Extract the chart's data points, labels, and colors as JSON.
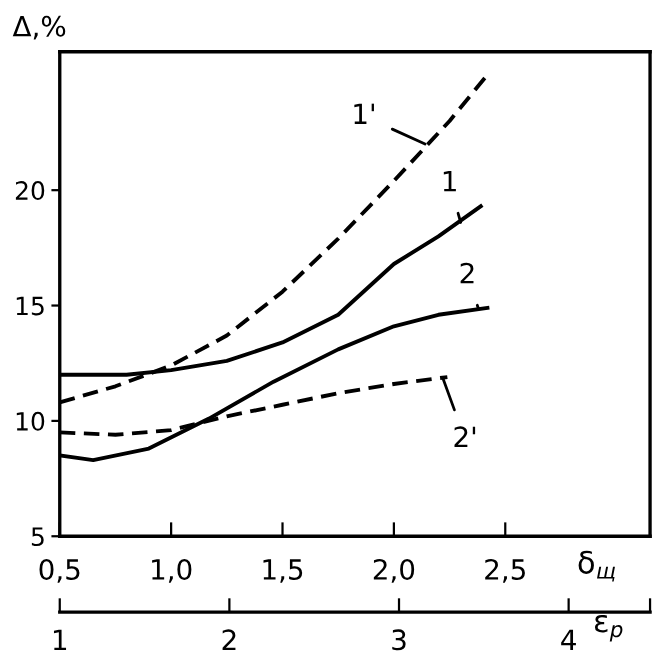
{
  "chart_data": {
    "type": "line",
    "xlabel": "δ$_{щ}$",
    "ylabel": "Δ,%",
    "x2label": "ε$_{p}$",
    "xlim": [
      0.5,
      3.15
    ],
    "xticks": [
      {
        "value": 0.5,
        "label": "0,5"
      },
      {
        "value": 1.0,
        "label": "1,0"
      },
      {
        "value": 1.5,
        "label": "1,5"
      },
      {
        "value": 2.0,
        "label": "2,0"
      },
      {
        "value": 2.5,
        "label": "2,5"
      }
    ],
    "x2lim": [
      1,
      4.48
    ],
    "x2ticks": [
      1,
      2,
      3,
      4,
      {
        "value": 4.48,
        "label": null
      }
    ],
    "ylim": [
      5,
      26
    ],
    "yticks": [
      5,
      10,
      15,
      20
    ],
    "grid": false,
    "marker": "none",
    "series": [
      {
        "color": "#000000",
        "line_style": "solid",
        "x": [
          0.5,
          0.8,
          1.0,
          1.25,
          1.5,
          1.75,
          2.0,
          2.2,
          2.39
        ],
        "values": [
          12.0,
          12.0,
          12.2,
          12.6,
          13.4,
          14.6,
          16.8,
          18.0,
          19.3
        ]
      },
      {
        "color": "#000000",
        "line_style": "dashed",
        "x": [
          0.5,
          0.75,
          1.0,
          1.25,
          1.5,
          1.75,
          2.0,
          2.25,
          2.42
        ],
        "values": [
          10.8,
          11.5,
          12.4,
          13.7,
          15.6,
          17.9,
          20.4,
          23.0,
          25.0
        ]
      },
      {
        "color": "#000000",
        "line_style": "solid",
        "x": [
          0.5,
          0.65,
          0.9,
          1.17,
          1.46,
          1.75,
          2.0,
          2.2,
          2.42
        ],
        "values": [
          8.5,
          8.3,
          8.8,
          10.1,
          11.7,
          13.1,
          14.1,
          14.6,
          14.9
        ]
      },
      {
        "color": "#000000",
        "line_style": "dashed",
        "x": [
          0.5,
          0.75,
          1.0,
          1.25,
          1.5,
          1.75,
          2.0,
          2.24
        ],
        "values": [
          9.5,
          9.4,
          9.6,
          10.2,
          10.7,
          11.2,
          11.6,
          11.9
        ]
      }
    ],
    "annotations": [
      {
        "text": "1'",
        "x": 2.14,
        "y": 22.0
      },
      {
        "text": "1",
        "x": 2.3,
        "y": 18.6
      },
      {
        "text": "2",
        "x": 2.38,
        "y": 14.85
      },
      {
        "text": "2'",
        "x": 2.22,
        "y": 11.85
      }
    ]
  }
}
